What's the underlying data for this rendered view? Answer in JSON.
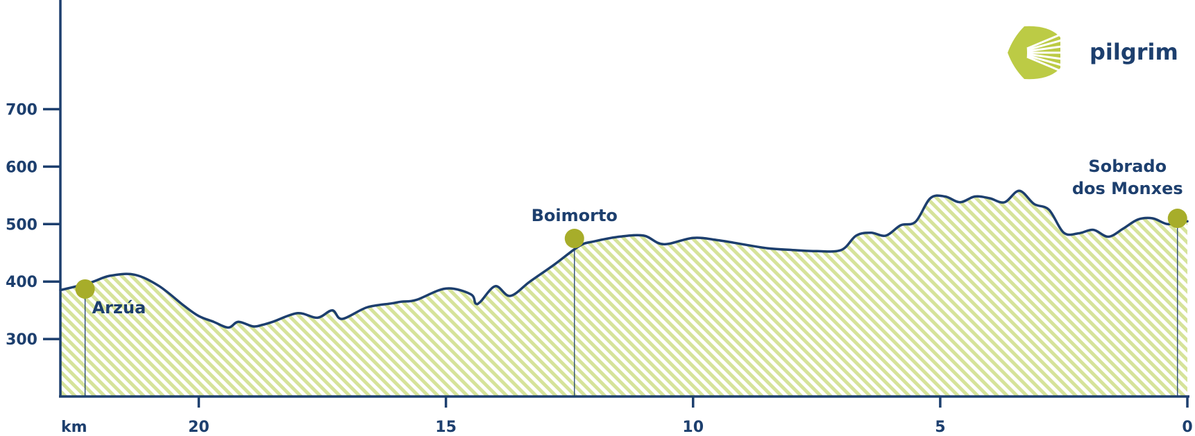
{
  "brand": {
    "name": "pilgrim"
  },
  "colors": {
    "line": "#1d3f6e",
    "fill": "#d6e39a",
    "marker": "#a7ad2a",
    "logo": "#bccb45"
  },
  "chart_data": {
    "type": "area",
    "title": "",
    "xlabel": "km",
    "ylabel": "",
    "x_direction": "reversed",
    "xlim": [
      22.8,
      0
    ],
    "ylim": [
      200,
      890
    ],
    "x_ticks": [
      "20",
      "15",
      "10",
      "5",
      "0"
    ],
    "x_tick_values": [
      20,
      15,
      10,
      5,
      0
    ],
    "y_ticks": [
      "300",
      "400",
      "500",
      "600",
      "700"
    ],
    "y_tick_values": [
      300,
      400,
      500,
      600,
      700
    ],
    "series": [
      {
        "name": "",
        "x": [
          22.8,
          22.2,
          21.8,
          21.3,
          20.8,
          20.3,
          20.0,
          19.7,
          19.4,
          19.2,
          18.9,
          18.7,
          18.5,
          18.0,
          17.6,
          17.3,
          17.1,
          16.6,
          16.1,
          15.9,
          15.6,
          15.0,
          14.5,
          14.4,
          14.3,
          14.0,
          13.7,
          13.3,
          12.8,
          12.3,
          12.0,
          11.5,
          11.0,
          10.6,
          10.0,
          9.5,
          9.0,
          8.5,
          8.0,
          7.5,
          7.0,
          6.7,
          6.4,
          6.1,
          5.8,
          5.5,
          5.2,
          4.9,
          4.6,
          4.3,
          4.0,
          3.7,
          3.4,
          3.1,
          2.8,
          2.5,
          2.2,
          1.9,
          1.6,
          1.3,
          1.0,
          0.7,
          0.4,
          0.1,
          0.0
        ],
        "values": [
          385,
          398,
          410,
          412,
          392,
          358,
          340,
          330,
          320,
          330,
          322,
          325,
          330,
          345,
          337,
          350,
          335,
          355,
          362,
          365,
          368,
          388,
          378,
          362,
          365,
          392,
          375,
          400,
          430,
          462,
          470,
          478,
          480,
          465,
          476,
          472,
          465,
          458,
          455,
          453,
          455,
          480,
          485,
          480,
          498,
          504,
          545,
          548,
          538,
          548,
          545,
          538,
          558,
          535,
          525,
          485,
          484,
          490,
          478,
          492,
          508,
          510,
          500,
          505,
          505
        ]
      }
    ],
    "stops": [
      {
        "name": "Arzúa",
        "km": 22.3,
        "elevation": 387
      },
      {
        "name": "Boimorto",
        "km": 12.4,
        "elevation": 475
      },
      {
        "name": "Sobrado dos Monxes",
        "name_line1": "Sobrado",
        "name_line2": "dos Monxes",
        "km": 0.2,
        "elevation": 510
      }
    ],
    "grid": false,
    "legend": "none"
  }
}
